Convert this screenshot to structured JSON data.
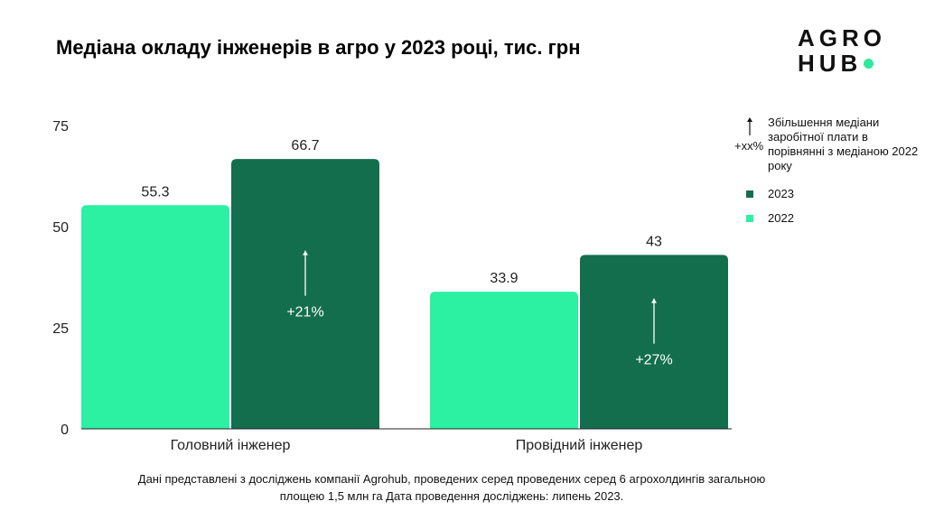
{
  "header": {
    "title": "Медіана окладу інженерів в агро у 2023 році, тис. грн"
  },
  "logo": {
    "line1": "AGRO",
    "line2": "HUB",
    "dot_color": "#2de99b"
  },
  "colors": {
    "series_2022": "#2cf0a2",
    "series_2023": "#136e4d",
    "axis": "#222222",
    "arrow": "#ffffff"
  },
  "legend": {
    "arrow_label": "+xx%",
    "arrow_description": "Збільшення медіани заробітної плати в порівнянні з медіаною 2022 року",
    "items": [
      {
        "label": "2023",
        "color": "#136e4d"
      },
      {
        "label": "2022",
        "color": "#2cf0a2"
      }
    ]
  },
  "chart_data": {
    "type": "bar",
    "categories": [
      "Головний інженер",
      "Провідний інженер"
    ],
    "series": [
      {
        "name": "2022",
        "values": [
          55.3,
          33.9
        ],
        "color": "#2cf0a2"
      },
      {
        "name": "2023",
        "values": [
          66.7,
          43
        ],
        "color": "#136e4d"
      }
    ],
    "value_labels": [
      [
        "55.3",
        "33.9"
      ],
      [
        "66.7",
        "43"
      ]
    ],
    "growth_labels": [
      "+21%",
      "+27%"
    ],
    "yticks": [
      0,
      25,
      50,
      75
    ],
    "ylim": [
      0,
      75
    ],
    "legend_position": "right",
    "grid": false
  },
  "footnote": "Дані представлені з досліджень компанії Agrohub, проведених серед проведених серед 6 агрохолдингів загальною площею 1,5 млн га Дата проведення досліджень: липень 2023."
}
